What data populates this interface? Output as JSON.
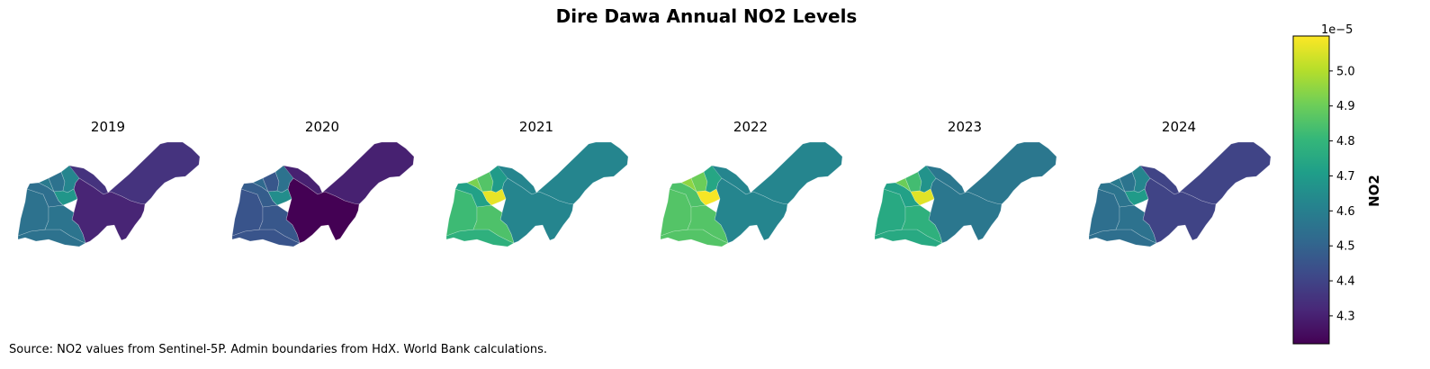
{
  "chart_data": {
    "type": "choropleth",
    "title": "Dire Dawa Annual NO2 Levels",
    "colormap": "viridis",
    "colorbar": {
      "label": "NO2",
      "offset_text": "1e−5",
      "range": [
        4.22,
        5.1
      ],
      "ticks": [
        4.3,
        4.4,
        4.5,
        4.6,
        4.7,
        4.8,
        4.9,
        5.0
      ],
      "tick_labels": [
        "4.3",
        "4.4",
        "4.5",
        "4.6",
        "4.7",
        "4.8",
        "4.9",
        "5.0"
      ]
    },
    "panels": [
      {
        "year": "2019",
        "values": {
          "east": 4.35,
          "center": 4.31,
          "w1": 4.55,
          "w2": 4.55,
          "w3": 4.56,
          "w4": 4.54,
          "n1": 4.58,
          "n2": 4.55,
          "n3": 4.62,
          "core": 4.68
        }
      },
      {
        "year": "2020",
        "values": {
          "east": 4.3,
          "center": 4.22,
          "w1": 4.45,
          "w2": 4.45,
          "w3": 4.46,
          "w4": 4.48,
          "n1": 4.52,
          "n2": 4.46,
          "n3": 4.55,
          "core": 4.65
        }
      },
      {
        "year": "2021",
        "values": {
          "east": 4.62,
          "center": 4.62,
          "w1": 4.78,
          "w2": 4.82,
          "w3": 4.85,
          "w4": 4.72,
          "n1": 4.92,
          "n2": 4.86,
          "n3": 4.7,
          "core": 5.07
        }
      },
      {
        "year": "2022",
        "values": {
          "east": 4.62,
          "center": 4.62,
          "w1": 4.86,
          "w2": 4.86,
          "w3": 4.86,
          "w4": 4.85,
          "n1": 4.95,
          "n2": 4.9,
          "n3": 4.74,
          "core": 5.09
        }
      },
      {
        "year": "2023",
        "values": {
          "east": 4.57,
          "center": 4.57,
          "w1": 4.75,
          "w2": 4.75,
          "w3": 4.78,
          "w4": 4.72,
          "n1": 4.9,
          "n2": 4.83,
          "n3": 4.67,
          "core": 5.06
        }
      },
      {
        "year": "2024",
        "values": {
          "east": 4.4,
          "center": 4.4,
          "w1": 4.54,
          "w2": 4.54,
          "w3": 4.55,
          "w4": 4.56,
          "n1": 4.58,
          "n2": 4.56,
          "n3": 4.62,
          "core": 4.7
        }
      }
    ]
  },
  "source": "Source: NO2 values from Sentinel-5P. Admin boundaries from HdX. World Bank calculations."
}
